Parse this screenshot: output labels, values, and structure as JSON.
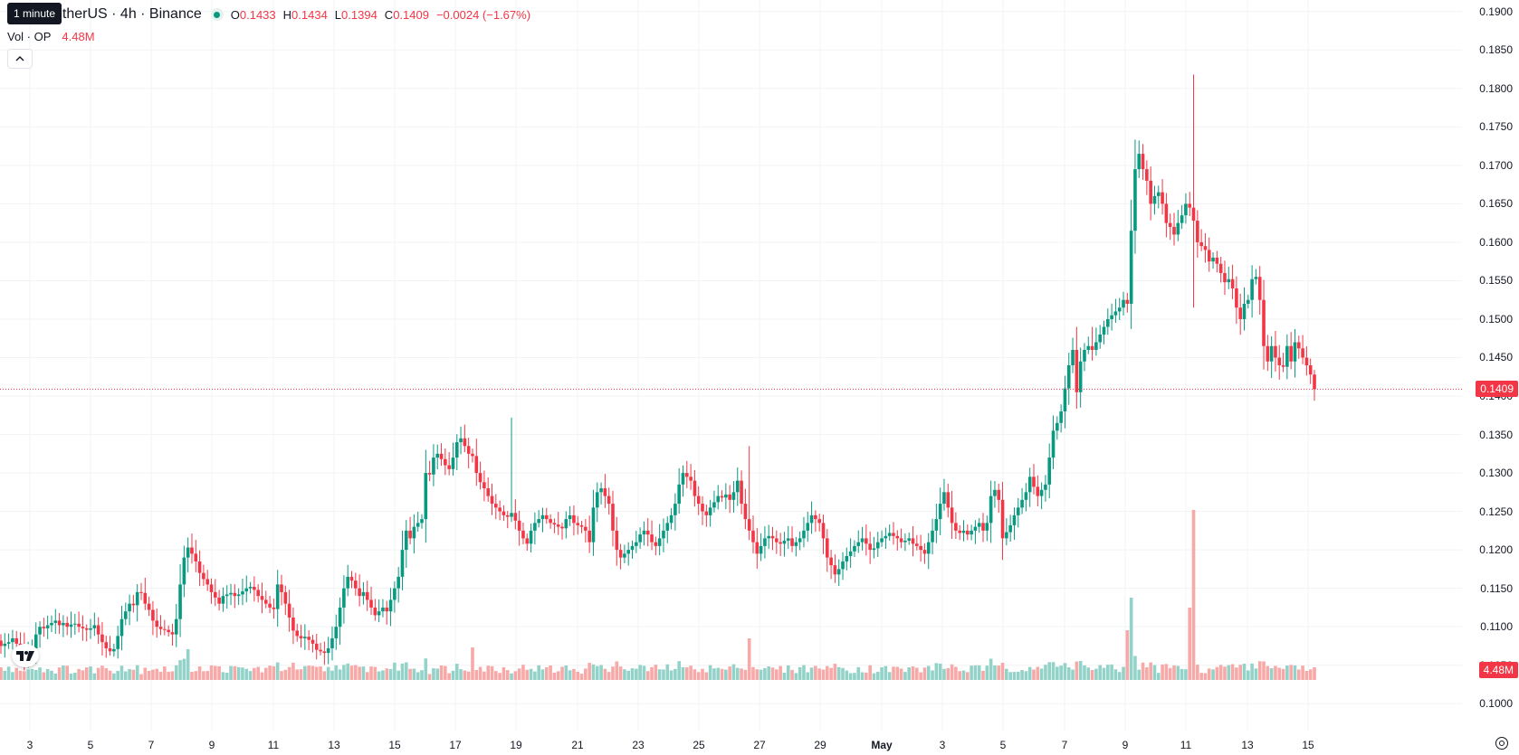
{
  "tooltip": "1 minute",
  "legend": {
    "symbol": "etherUS · 4h · Binance",
    "open_key": "O",
    "open": "0.1433",
    "high_key": "H",
    "high": "0.1434",
    "low_key": "L",
    "low": "0.1394",
    "close_key": "C",
    "close": "0.1409",
    "change": "−0.0024 (−1.67%)",
    "volume_label": "Vol · OP",
    "volume_value": "4.48M",
    "collapse_icon": "chevron-up-icon"
  },
  "price_axis": {
    "ticks": [
      "0.1900",
      "0.1850",
      "0.1800",
      "0.1750",
      "0.1700",
      "0.1650",
      "0.1600",
      "0.1550",
      "0.1500",
      "0.1450",
      "0.1400",
      "0.1350",
      "0.1300",
      "0.1250",
      "0.1200",
      "0.1150",
      "0.1100",
      "0.1050",
      "0.1000"
    ],
    "last_price": "0.1409",
    "last_volume": "4.48M"
  },
  "time_axis": {
    "ticks": [
      "3",
      "5",
      "7",
      "9",
      "11",
      "13",
      "15",
      "17",
      "19",
      "21",
      "23",
      "25",
      "27",
      "29",
      "May",
      "3",
      "5",
      "7",
      "9",
      "11",
      "13",
      "15"
    ]
  },
  "colors": {
    "up": "#089981",
    "down": "#f23645",
    "volume_up": "#92d2c8",
    "volume_down": "#f7a9a7",
    "grid": "#f2f3f5"
  },
  "icons": {
    "logo": "tradingview-logo-icon",
    "settings": "settings-icon"
  },
  "chart_data": {
    "type": "candlestick",
    "interval": "4h",
    "ylim": [
      0.0965,
      0.1915
    ],
    "volume_peak": "18M",
    "closes": [
      0.1075,
      0.1078,
      0.108,
      0.1085,
      0.1078,
      0.1075,
      0.106,
      0.1068,
      0.1072,
      0.109,
      0.11,
      0.1098,
      0.1102,
      0.1105,
      0.1108,
      0.1102,
      0.1105,
      0.11,
      0.1103,
      0.1104,
      0.11,
      0.1098,
      0.1096,
      0.1098,
      0.1102,
      0.109,
      0.108,
      0.1072,
      0.1068,
      0.1071,
      0.1088,
      0.111,
      0.112,
      0.113,
      0.1128,
      0.1145,
      0.1144,
      0.113,
      0.1122,
      0.1108,
      0.11,
      0.1097,
      0.1096,
      0.1093,
      0.109,
      0.111,
      0.1155,
      0.119,
      0.1203,
      0.1195,
      0.1185,
      0.117,
      0.1162,
      0.1155,
      0.1145,
      0.1138,
      0.113,
      0.114,
      0.1142,
      0.1144,
      0.114,
      0.1142,
      0.1146,
      0.115,
      0.1152,
      0.1148,
      0.114,
      0.1135,
      0.113,
      0.1125,
      0.1123,
      0.1155,
      0.1145,
      0.113,
      0.1112,
      0.1095,
      0.1088,
      0.1085,
      0.1087,
      0.1083,
      0.1078,
      0.107,
      0.1068,
      0.1066,
      0.1072,
      0.1085,
      0.11,
      0.1125,
      0.115,
      0.1165,
      0.116,
      0.115,
      0.114,
      0.1145,
      0.1135,
      0.1125,
      0.1115,
      0.112,
      0.1125,
      0.112,
      0.1135,
      0.115,
      0.1165,
      0.12,
      0.1225,
      0.1215,
      0.123,
      0.1235,
      0.124,
      0.13,
      0.1298,
      0.132,
      0.1325,
      0.1318,
      0.131,
      0.1305,
      0.132,
      0.134,
      0.1345,
      0.1335,
      0.1325,
      0.1322,
      0.13,
      0.1288,
      0.128,
      0.127,
      0.126,
      0.1255,
      0.125,
      0.1245,
      0.1243,
      0.1248,
      0.1238,
      0.1225,
      0.1215,
      0.1208,
      0.1225,
      0.1235,
      0.124,
      0.1245,
      0.124,
      0.1235,
      0.1233,
      0.123,
      0.1228,
      0.124,
      0.1245,
      0.1235,
      0.1232,
      0.123,
      0.1225,
      0.121,
      0.1255,
      0.1275,
      0.128,
      0.127,
      0.126,
      0.1225,
      0.12,
      0.119,
      0.1195,
      0.12,
      0.1205,
      0.121,
      0.122,
      0.1225,
      0.122,
      0.121,
      0.1205,
      0.1215,
      0.1225,
      0.1235,
      0.1245,
      0.126,
      0.1285,
      0.13,
      0.1295,
      0.129,
      0.127,
      0.126,
      0.125,
      0.1245,
      0.1255,
      0.1262,
      0.127,
      0.1268,
      0.1272,
      0.1265,
      0.1275,
      0.129,
      0.126,
      0.124,
      0.1225,
      0.121,
      0.1195,
      0.1205,
      0.1215,
      0.1218,
      0.1215,
      0.121,
      0.1208,
      0.1212,
      0.1215,
      0.1205,
      0.121,
      0.1215,
      0.1225,
      0.1235,
      0.1245,
      0.124,
      0.1235,
      0.1215,
      0.119,
      0.118,
      0.1168,
      0.1175,
      0.1185,
      0.1192,
      0.1198,
      0.1205,
      0.121,
      0.1215,
      0.1208,
      0.12,
      0.1202,
      0.121,
      0.1215,
      0.1218,
      0.1222,
      0.1218,
      0.1215,
      0.121,
      0.1212,
      0.1215,
      0.1208,
      0.1205,
      0.12,
      0.1195,
      0.121,
      0.1225,
      0.124,
      0.126,
      0.1275,
      0.1255,
      0.1235,
      0.1225,
      0.1222,
      0.1225,
      0.122,
      0.1225,
      0.123,
      0.1235,
      0.1225,
      0.1235,
      0.127,
      0.1278,
      0.1265,
      0.1215,
      0.1223,
      0.1232,
      0.1245,
      0.1255,
      0.1265,
      0.1275,
      0.1295,
      0.1282,
      0.127,
      0.1278,
      0.1285,
      0.132,
      0.1355,
      0.1365,
      0.138,
      0.141,
      0.144,
      0.146,
      0.1405,
      0.1445,
      0.146,
      0.1465,
      0.146,
      0.147,
      0.148,
      0.149,
      0.15,
      0.1505,
      0.151,
      0.1515,
      0.1525,
      0.152,
      0.1615,
      0.1695,
      0.1715,
      0.1695,
      0.168,
      0.165,
      0.166,
      0.1665,
      0.165,
      0.1625,
      0.162,
      0.161,
      0.1625,
      0.1635,
      0.165,
      0.1645,
      0.1628,
      0.16,
      0.1595,
      0.159,
      0.1575,
      0.158,
      0.1572,
      0.156,
      0.1548,
      0.1552,
      0.154,
      0.1515,
      0.15,
      0.152,
      0.1525,
      0.1552,
      0.1555,
      0.1525,
      0.1465,
      0.1445,
      0.1465,
      0.145,
      0.144,
      0.1438,
      0.1465,
      0.1445,
      0.147,
      0.1462,
      0.145,
      0.144,
      0.1428,
      0.1409
    ],
    "big_candles": {
      "9 May high": 0.1818,
      "9 May low": 0.1515,
      "15 May low": 0.1394
    }
  }
}
